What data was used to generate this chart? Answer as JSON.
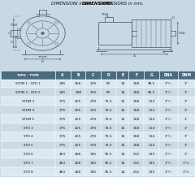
{
  "title1_bold": "DIMENSIONI",
  "title1_rest": " in mm. - ",
  "title2_bold": "DIMENSIONS",
  "title2_rest": " in mm.",
  "bg_color": "#c8d8e5",
  "header_bg": "#4a6a80",
  "header_text_color": "#ffffff",
  "row_colors": [
    "#dce8f0",
    "#ccdae6"
  ],
  "columns": [
    "TIPO - TYPE",
    "A",
    "B",
    "C",
    "D",
    "E",
    "F",
    "G",
    "DNA",
    "DNM"
  ],
  "col_widths": [
    2.3,
    0.65,
    0.65,
    0.65,
    0.65,
    0.52,
    0.65,
    0.65,
    0.78,
    0.72
  ],
  "rows": [
    [
      "STDM 1 - STD 1",
      "345",
      "158",
      "235",
      "87",
      "14",
      "158",
      "98.5",
      "1\"½",
      "1\""
    ],
    [
      "STDM 2 - STD 2",
      "345",
      "198",
      "235",
      "87",
      "14",
      "158",
      "96.5",
      "1\"½",
      "1\""
    ],
    [
      "STDM 3",
      "375",
      "225",
      "270",
      "73.5",
      "15",
      "158",
      "114",
      "1\"½",
      "1\""
    ],
    [
      "STDM 4",
      "375",
      "225",
      "270",
      "73.5",
      "15",
      "158",
      "114",
      "1\"½",
      "1\""
    ],
    [
      "STDM 5",
      "375",
      "225",
      "270",
      "73.5",
      "15",
      "158",
      "114",
      "1\"½",
      "1\""
    ],
    [
      "STD 3",
      "375",
      "225",
      "270",
      "73.5",
      "15",
      "158",
      "114",
      "1\"½",
      "1\""
    ],
    [
      "STD 4",
      "375",
      "225",
      "270",
      "73.5",
      "15",
      "158",
      "114",
      "1\"½",
      "1\""
    ],
    [
      "STD 5",
      "375",
      "225",
      "270",
      "73.5",
      "15",
      "158",
      "114",
      "1\"½",
      "1\""
    ],
    [
      "STD 6",
      "463",
      "268",
      "305",
      "95.5",
      "14",
      "212",
      "135",
      "1\"½",
      "1\""
    ],
    [
      "STD 7",
      "463",
      "268",
      "305",
      "95.5",
      "14",
      "212",
      "135",
      "1\"½",
      "1\"¼"
    ],
    [
      "STD 8",
      "463",
      "268",
      "305",
      "95.5",
      "14",
      "212",
      "135",
      "1\"½",
      "1\"¼"
    ]
  ],
  "line_color": "#556677",
  "dim_color": "#445566"
}
